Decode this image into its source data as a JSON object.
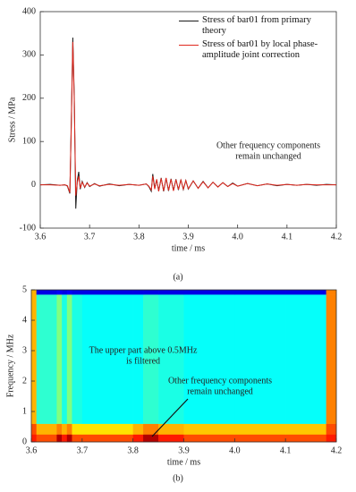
{
  "chart_data": [
    {
      "type": "line",
      "caption": "(a)",
      "xlabel": "time / ms",
      "ylabel": "Stress / MPa",
      "legend": "upper right",
      "annotations": [
        [
          "Other frequency components",
          "remain unchanged"
        ]
      ],
      "xlim": [
        3.6,
        4.2
      ],
      "xticks": [
        3.6,
        3.7,
        3.8,
        3.9,
        {
          "value": 4,
          "label": "4.0"
        },
        4.1,
        4.2
      ],
      "ylim": [
        -100,
        400
      ],
      "yticks": [
        -100,
        0,
        100,
        200,
        300,
        400
      ],
      "x": [
        3.6,
        3.62,
        3.64,
        3.65,
        3.655,
        3.66,
        3.663,
        3.666,
        3.669,
        3.672,
        3.675,
        3.678,
        3.681,
        3.685,
        3.69,
        3.695,
        3.7,
        3.71,
        3.72,
        3.74,
        3.76,
        3.78,
        3.8,
        3.815,
        3.82,
        3.825,
        3.828,
        3.832,
        3.836,
        3.84,
        3.845,
        3.85,
        3.855,
        3.86,
        3.865,
        3.87,
        3.875,
        3.88,
        3.885,
        3.89,
        3.895,
        3.9,
        3.91,
        3.92,
        3.93,
        3.94,
        3.95,
        3.96,
        3.97,
        3.98,
        3.99,
        4.0,
        4.02,
        4.04,
        4.06,
        4.08,
        4.1,
        4.12,
        4.14,
        4.16,
        4.18,
        4.2
      ],
      "series": [
        {
          "name": "Stress of bar01 from primary theory",
          "color": "#1a1a1a",
          "values": [
            0,
            1,
            -1,
            0,
            -3,
            -20,
            150,
            340,
            200,
            -55,
            10,
            30,
            -10,
            8,
            -6,
            5,
            -4,
            3,
            -3,
            2,
            -2,
            1,
            -1,
            2,
            -4,
            -15,
            25,
            -8,
            12,
            -14,
            16,
            -15,
            15,
            -14,
            14,
            -13,
            13,
            -12,
            12,
            -11,
            10,
            -10,
            9,
            -8,
            8,
            -7,
            6,
            -5,
            5,
            -4,
            4,
            -3,
            3,
            -2,
            2,
            -2,
            1,
            -1,
            1,
            -1,
            1,
            0
          ]
        },
        {
          "name": "Stress of bar01 by local phase-amplitude joint correction",
          "color": "#e0281e",
          "values": [
            0,
            0,
            -1,
            0,
            -2,
            -18,
            140,
            330,
            190,
            -25,
            5,
            20,
            -8,
            6,
            -5,
            4,
            -3,
            2,
            -2,
            1,
            -1,
            1,
            -1,
            2,
            -3,
            -12,
            20,
            -10,
            13,
            -15,
            15,
            -14,
            16,
            -13,
            13,
            -14,
            12,
            -11,
            11,
            -10,
            10,
            -9,
            9,
            -8,
            7,
            -7,
            6,
            -5,
            5,
            -4,
            3,
            -3,
            3,
            -2,
            2,
            -1,
            1,
            -1,
            1,
            0,
            0,
            0
          ]
        }
      ]
    },
    {
      "type": "heatmap",
      "caption": "(b)",
      "xlabel": "time / ms",
      "ylabel": "Frequency / MHz",
      "colormap": "jet",
      "annotations": [
        [
          "The upper part above 0.5MHz",
          "is filtered"
        ],
        [
          "Other frequency components",
          "remain unchanged"
        ]
      ],
      "xlim": [
        3.6,
        4.2
      ],
      "xticks": [
        3.6,
        3.7,
        3.8,
        3.9,
        {
          "value": 4,
          "label": "4.0"
        },
        4.1,
        4.2
      ],
      "ylim": [
        0,
        5
      ],
      "yticks": [
        0,
        1,
        2,
        3,
        4,
        5
      ],
      "xbins": [
        3.6,
        3.61,
        3.65,
        3.66,
        3.67,
        3.68,
        3.7,
        3.8,
        3.82,
        3.85,
        3.9,
        4.0,
        4.1,
        4.18,
        4.2
      ],
      "ybins": [
        0,
        0.25,
        0.6,
        4.85,
        5
      ],
      "z": [
        [
          0.85,
          0.8,
          0.95,
          0.85,
          0.95,
          0.8,
          0.8,
          0.85,
          0.95,
          0.85,
          0.8,
          0.8,
          0.8,
          0.85
        ],
        [
          0.8,
          0.7,
          0.75,
          0.7,
          0.75,
          0.65,
          0.65,
          0.7,
          0.75,
          0.7,
          0.68,
          0.68,
          0.68,
          0.8
        ],
        [
          0.7,
          0.42,
          0.5,
          0.4,
          0.5,
          0.4,
          0.38,
          0.38,
          0.42,
          0.4,
          0.38,
          0.38,
          0.38,
          0.75
        ],
        [
          0.7,
          0.1,
          0.12,
          0.1,
          0.12,
          0.1,
          0.1,
          0.1,
          0.1,
          0.1,
          0.1,
          0.1,
          0.1,
          0.75
        ]
      ]
    }
  ]
}
